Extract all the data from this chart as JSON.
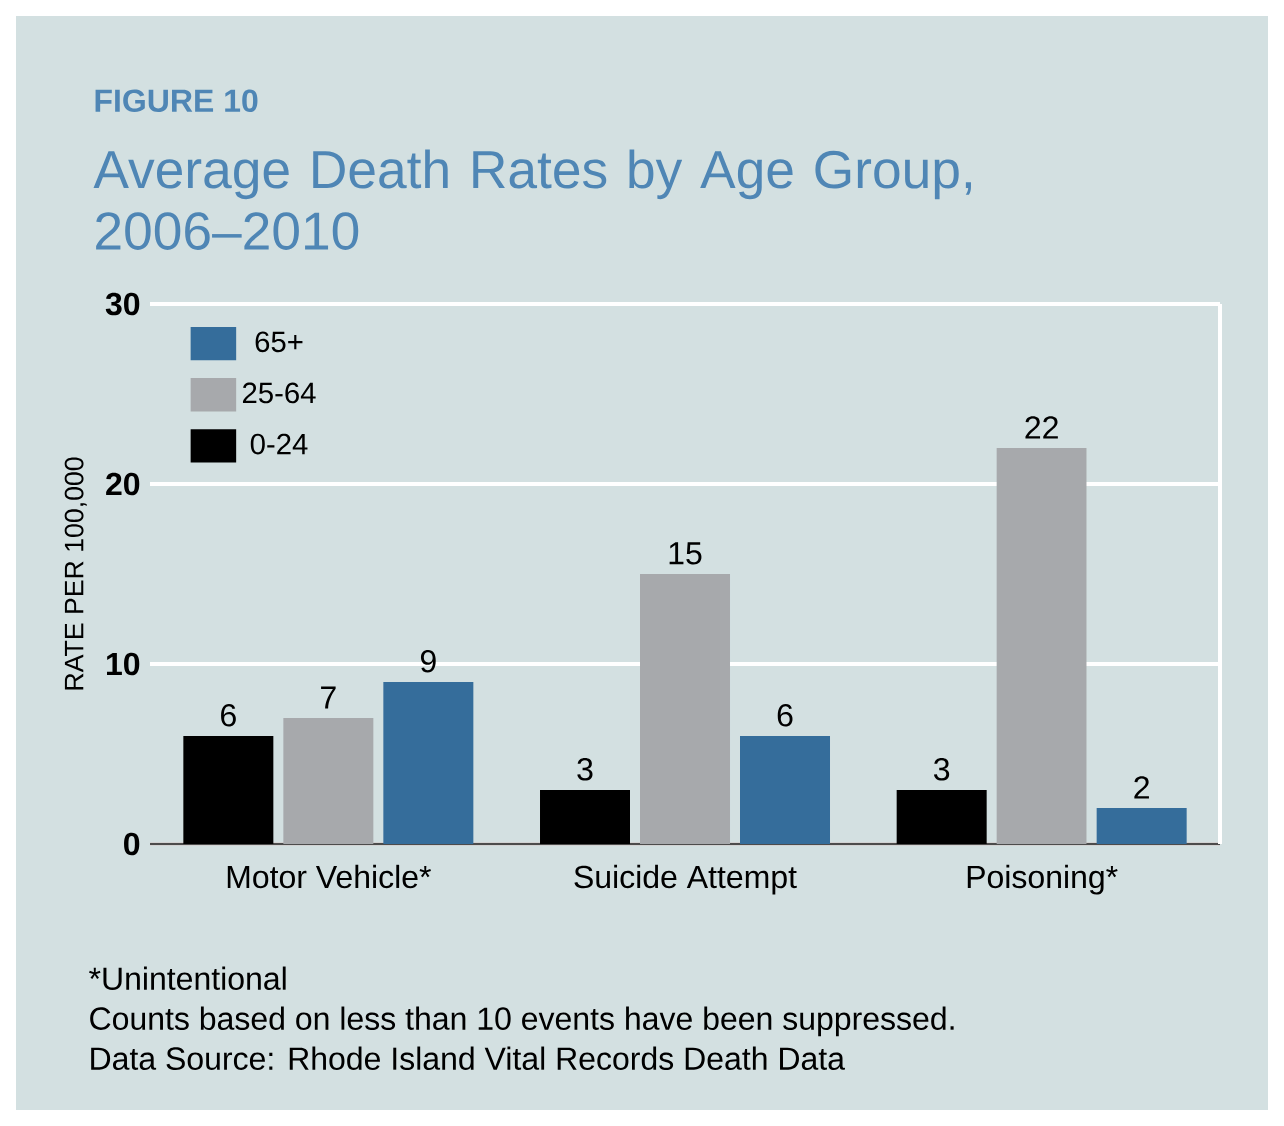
{
  "chart_data": {
    "type": "bar",
    "subtitle": "FIGURE 10",
    "title": "Average Death Rates by Age Group, 2006–2010",
    "ylabel": "RATE PER 100,000",
    "categories": [
      "Motor Vehicle*",
      "Suicide Attempt",
      "Poisoning*"
    ],
    "series": [
      {
        "name": "0-24",
        "color": "#000000",
        "values": [
          6,
          3,
          3
        ]
      },
      {
        "name": "25-64",
        "color": "#a7a9ac",
        "values": [
          7,
          15,
          22
        ]
      },
      {
        "name": "65+",
        "color": "#356d9b",
        "values": [
          9,
          6,
          2
        ]
      }
    ],
    "ylim": [
      0,
      30
    ],
    "yticks": [
      0,
      10,
      20,
      30
    ],
    "grid": "y",
    "legend": "top left",
    "data_labels": true,
    "annotations": [
      "*Unintentional",
      "Counts based on less than 10 events have been suppressed.",
      "Data Source: Rhode Island Vital Records Death Data"
    ]
  }
}
